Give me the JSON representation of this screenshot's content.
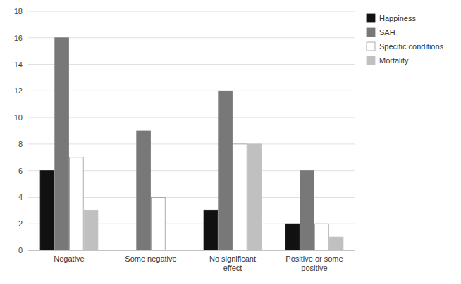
{
  "chart_data": {
    "type": "bar",
    "categories": [
      "Negative",
      "Some negative",
      "No significant\neffect",
      "Positive or some\npositive"
    ],
    "series": [
      {
        "name": "Happiness",
        "color": "#111111",
        "values": [
          6,
          0,
          3,
          2
        ]
      },
      {
        "name": "SAH",
        "color": "#787878",
        "values": [
          16,
          9,
          12,
          6
        ]
      },
      {
        "name": "Specific conditions",
        "color": "#ffffff",
        "values": [
          7,
          4,
          8,
          2
        ]
      },
      {
        "name": "Mortality",
        "color": "#c0c0c0",
        "values": [
          3,
          0,
          8,
          1
        ]
      }
    ],
    "ylim": [
      0,
      18
    ],
    "yticks": [
      0,
      2,
      4,
      6,
      8,
      10,
      12,
      14,
      16,
      18
    ],
    "grid": true,
    "legend": "right"
  }
}
